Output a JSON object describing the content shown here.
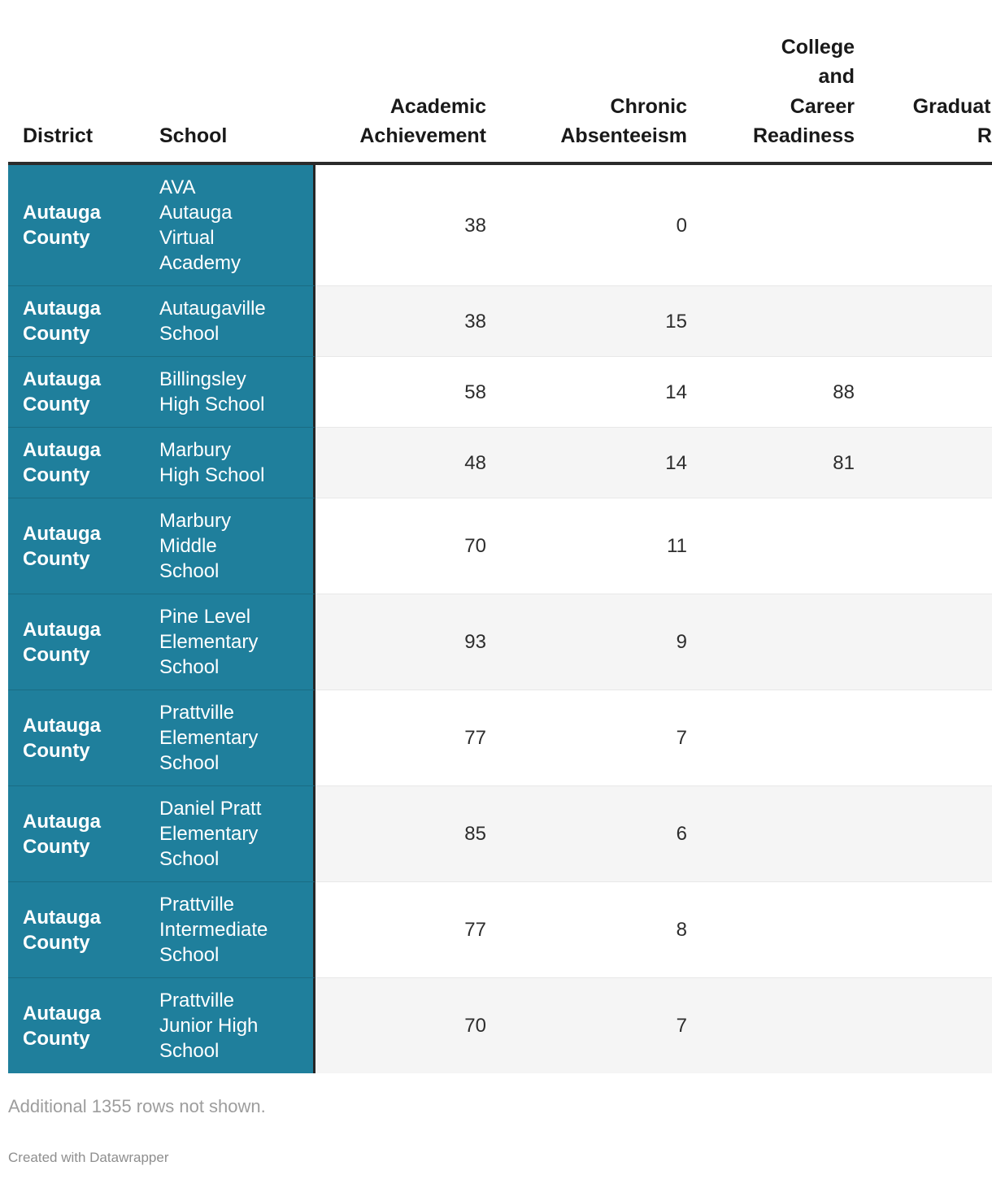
{
  "chart_data": {
    "type": "table",
    "columns": [
      {
        "key": "district",
        "label": "District"
      },
      {
        "key": "school",
        "label": "School"
      },
      {
        "key": "academic",
        "label": "Academic\nAchievement"
      },
      {
        "key": "chronic",
        "label": "Chronic\nAbsenteeism"
      },
      {
        "key": "college",
        "label": "College\nand\nCareer\nReadiness"
      },
      {
        "key": "graduation",
        "label": "Graduation\nRate"
      }
    ],
    "rows": [
      {
        "district": "Autauga County",
        "school": "AVA\nAutauga\nVirtual\nAcademy",
        "academic": "38",
        "chronic": "0",
        "college": "",
        "graduation": ""
      },
      {
        "district": "Autauga County",
        "school": "Autaugaville\nSchool",
        "academic": "38",
        "chronic": "15",
        "college": "",
        "graduation": ""
      },
      {
        "district": "Autauga County",
        "school": "Billingsley\nHigh School",
        "academic": "58",
        "chronic": "14",
        "college": "88",
        "graduation": ""
      },
      {
        "district": "Autauga County",
        "school": "Marbury\nHigh School",
        "academic": "48",
        "chronic": "14",
        "college": "81",
        "graduation": ""
      },
      {
        "district": "Autauga County",
        "school": "Marbury\nMiddle\nSchool",
        "academic": "70",
        "chronic": "11",
        "college": "",
        "graduation": ""
      },
      {
        "district": "Autauga County",
        "school": "Pine Level\nElementary\nSchool",
        "academic": "93",
        "chronic": "9",
        "college": "",
        "graduation": ""
      },
      {
        "district": "Autauga County",
        "school": "Prattville\nElementary\nSchool",
        "academic": "77",
        "chronic": "7",
        "college": "",
        "graduation": ""
      },
      {
        "district": "Autauga County",
        "school": "Daniel Pratt\nElementary\nSchool",
        "academic": "85",
        "chronic": "6",
        "college": "",
        "graduation": ""
      },
      {
        "district": "Autauga County",
        "school": "Prattville\nIntermediate\nSchool",
        "academic": "77",
        "chronic": "8",
        "college": "",
        "graduation": ""
      },
      {
        "district": "Autauga County",
        "school": "Prattville\nJunior High\nSchool",
        "academic": "70",
        "chronic": "7",
        "college": "",
        "graduation": ""
      }
    ]
  },
  "footer": {
    "additional_rows_note": "Additional 1355 rows not shown.",
    "attribution": "Created with Datawrapper"
  },
  "colors": {
    "frozen_column_bg": "#1f7f9c",
    "frozen_column_text": "#ffffff",
    "header_border": "#2b2b2b",
    "alt_row_bg": "#f5f5f5",
    "row_divider": "#e8e8e8",
    "header_text": "#191919",
    "cell_text": "#2d2d2d",
    "muted_text": "#9d9d9d"
  }
}
